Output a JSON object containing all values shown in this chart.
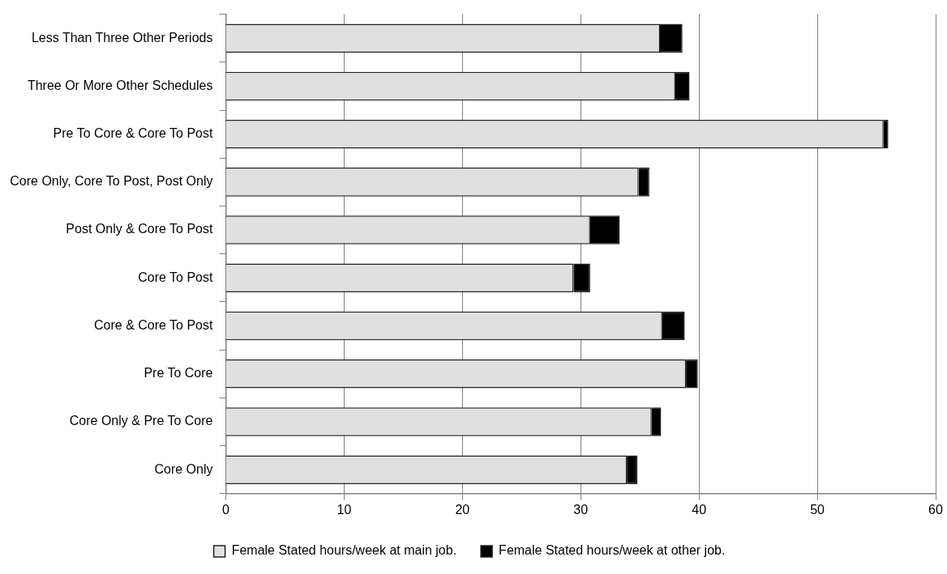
{
  "chart_data": {
    "type": "bar",
    "orientation": "horizontal",
    "stacked": true,
    "categories": [
      "Less Than Three Other Periods",
      "Three Or More Other Schedules",
      "Pre To Core & Core To Post",
      "Core Only, Core To Post, Post Only",
      "Post Only & Core To Post",
      "Core To Post",
      "Core & Core To Post",
      "Pre To Core",
      "Core Only & Pre To Core",
      "Core Only"
    ],
    "series": [
      {
        "name": "Female Stated hours/week at main job.",
        "color": "#e0e0e0",
        "values": [
          36.7,
          38.0,
          55.6,
          34.9,
          30.8,
          29.4,
          36.9,
          38.9,
          36.0,
          33.9
        ]
      },
      {
        "name": "Female Stated hours/week at other job.",
        "color": "#000000",
        "values": [
          1.9,
          1.2,
          0.4,
          0.9,
          2.5,
          1.4,
          1.9,
          1.0,
          0.8,
          0.9
        ]
      }
    ],
    "xlim": [
      0,
      60
    ],
    "xticks": [
      0,
      10,
      20,
      30,
      40,
      50,
      60
    ],
    "grid": "x",
    "legend": "bottom"
  }
}
